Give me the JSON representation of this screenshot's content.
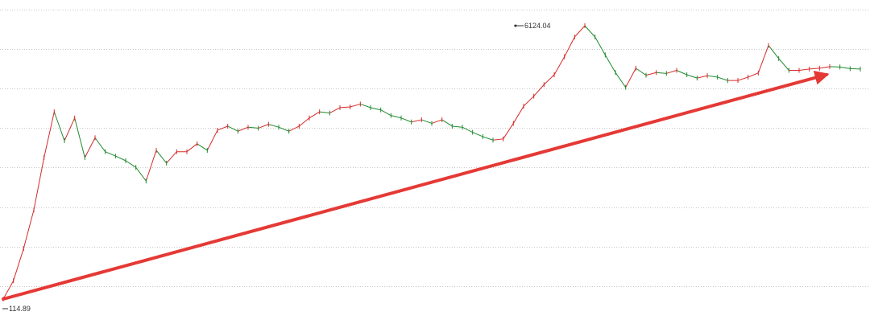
{
  "chart_data": {
    "type": "line",
    "style": "candlestick-like",
    "title": "",
    "xlabel": "",
    "ylabel": "",
    "grid": true,
    "log_scale": true,
    "colors": {
      "up": "#d62b2b",
      "down": "#1f8a2f",
      "trend_arrow": "#e53935",
      "grid": "#c8c8c8",
      "annotation": "#333333"
    },
    "annotations": {
      "high_label": "6124.04",
      "low_label": "114.89"
    },
    "series": [
      {
        "values": [
          114.89,
          150,
          240,
          420,
          900,
          1750,
          1150,
          1600,
          900,
          1200,
          980,
          920,
          860,
          780,
          640,
          1000,
          830,
          980,
          980,
          1100,
          1000,
          1340,
          1420,
          1320,
          1400,
          1380,
          1460,
          1400,
          1320,
          1420,
          1600,
          1750,
          1720,
          1860,
          1880,
          1960,
          1860,
          1800,
          1660,
          1600,
          1510,
          1560,
          1480,
          1560,
          1420,
          1400,
          1300,
          1220,
          1160,
          1180,
          1480,
          1900,
          2200,
          2600,
          3000,
          3900,
          5200,
          6124.04,
          5200,
          4000,
          3100,
          2500,
          3300,
          2980,
          3100,
          3060,
          3200,
          3000,
          2860,
          2960,
          2900,
          2760,
          2760,
          2900,
          3080,
          4600,
          3800,
          3200,
          3200,
          3260,
          3300,
          3380,
          3360,
          3280,
          3260
        ]
      }
    ],
    "overlay": {
      "type": "trend-arrow",
      "from_index": 0,
      "to_index": 81
    }
  }
}
